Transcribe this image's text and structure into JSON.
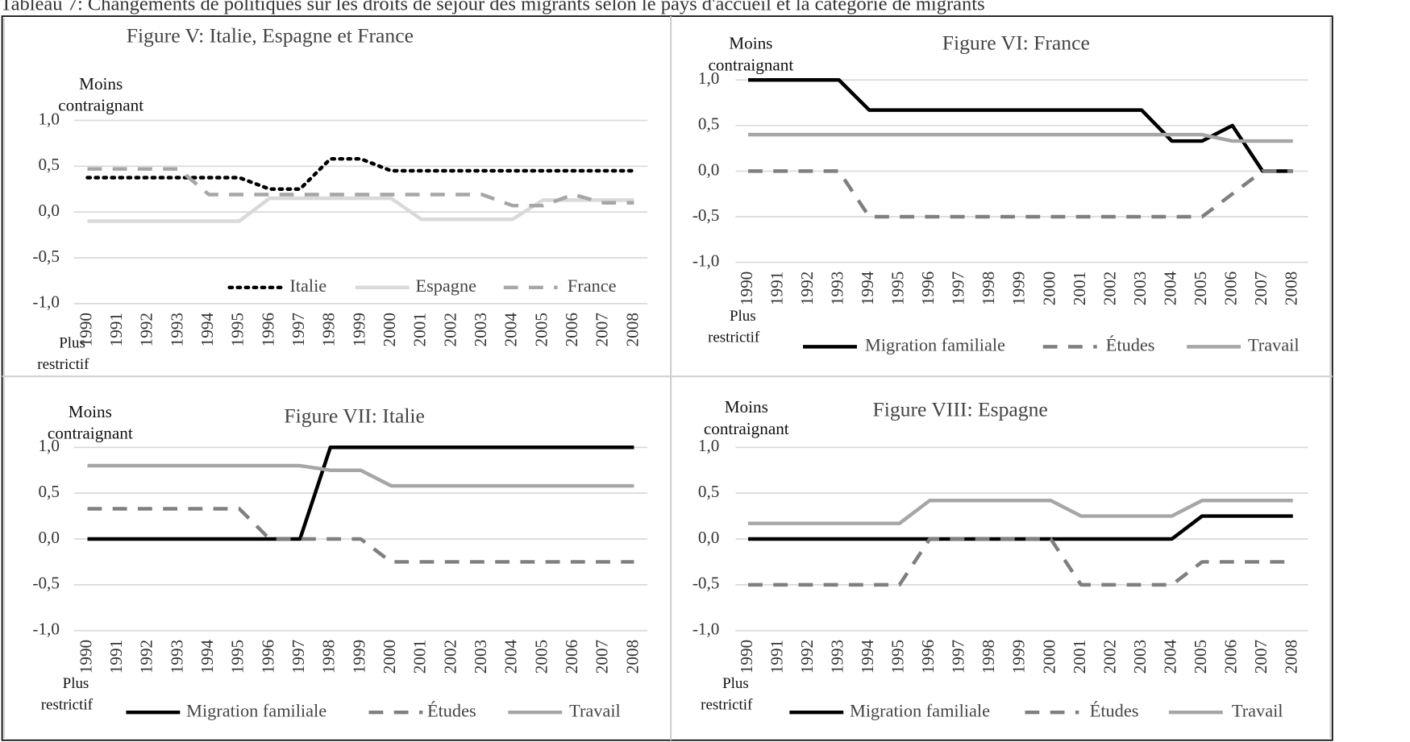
{
  "caption": "Tableau 7: Changements de politiques sur les droits de séjour des migrants selon le pays d'accueil et la catégorie de migrants",
  "chart_data": [
    {
      "type": "line",
      "title": "Figure V: Italie, Espagne et France",
      "top_label": [
        "Moins",
        "contraignant"
      ],
      "bottom_label": [
        "Plus",
        "restrictif"
      ],
      "categories": [
        "1990",
        "1991",
        "1992",
        "1993",
        "1994",
        "1995",
        "1996",
        "1997",
        "1998",
        "1999",
        "2000",
        "2001",
        "2002",
        "2003",
        "2004",
        "2005",
        "2006",
        "2007",
        "2008"
      ],
      "ylim": [
        -1,
        1
      ],
      "yticks": [
        {
          "value": 1,
          "label": "1,0"
        },
        {
          "value": 0.5,
          "label": "0,5"
        },
        {
          "value": 0,
          "label": "0,0"
        },
        {
          "value": -0.5,
          "label": "-0,5"
        },
        {
          "value": -1,
          "label": "-1,0"
        }
      ],
      "grid": true,
      "series": [
        {
          "name": "Italie",
          "color": "#000000",
          "dash": "dotted",
          "values": [
            0.375,
            0.375,
            0.375,
            0.375,
            0.375,
            0.375,
            0.25,
            0.25,
            0.58,
            0.58,
            0.45,
            0.45,
            0.45,
            0.45,
            0.45,
            0.45,
            0.45,
            0.45,
            0.45
          ]
        },
        {
          "name": "Espagne",
          "color": "#d9d9d9",
          "dash": "solid",
          "values": [
            -0.1,
            -0.1,
            -0.1,
            -0.1,
            -0.1,
            -0.1,
            0.15,
            0.15,
            0.15,
            0.15,
            0.15,
            -0.08,
            -0.08,
            -0.08,
            -0.08,
            0.13,
            0.13,
            0.13,
            0.13
          ]
        },
        {
          "name": "France",
          "color": "#a6a6a6",
          "dash": "dashed",
          "values": [
            0.47,
            0.47,
            0.47,
            0.47,
            0.19,
            0.19,
            0.19,
            0.19,
            0.19,
            0.19,
            0.19,
            0.19,
            0.19,
            0.19,
            0.07,
            0.07,
            0.19,
            0.1,
            0.1
          ]
        }
      ]
    },
    {
      "type": "line",
      "title": "Figure VI: France",
      "top_label": [
        "Moins",
        "contraignant"
      ],
      "bottom_label": [
        "Plus",
        "restrictif"
      ],
      "categories": [
        "1990",
        "1991",
        "1992",
        "1993",
        "1994",
        "1995",
        "1996",
        "1997",
        "1998",
        "1999",
        "2000",
        "2001",
        "2002",
        "2003",
        "2004",
        "2005",
        "2006",
        "2007",
        "2008"
      ],
      "ylim": [
        -1,
        1
      ],
      "yticks": [
        {
          "value": 1,
          "label": "1,0"
        },
        {
          "value": 0.5,
          "label": "0,5"
        },
        {
          "value": 0,
          "label": "0,0"
        },
        {
          "value": -0.5,
          "label": "-0,5"
        },
        {
          "value": -1,
          "label": "-1,0"
        }
      ],
      "grid": true,
      "series": [
        {
          "name": "Migration familiale",
          "color": "#000000",
          "dash": "solid",
          "values": [
            1,
            1,
            1,
            1,
            0.67,
            0.67,
            0.67,
            0.67,
            0.67,
            0.67,
            0.67,
            0.67,
            0.67,
            0.67,
            0.33,
            0.33,
            0.5,
            0,
            0
          ]
        },
        {
          "name": "Études",
          "color": "#7f7f7f",
          "dash": "dashed",
          "values": [
            0,
            0,
            0,
            0,
            -0.5,
            -0.5,
            -0.5,
            -0.5,
            -0.5,
            -0.5,
            -0.5,
            -0.5,
            -0.5,
            -0.5,
            -0.5,
            -0.5,
            -0.25,
            0,
            0
          ]
        },
        {
          "name": "Travail",
          "color": "#a6a6a6",
          "dash": "solid",
          "values": [
            0.4,
            0.4,
            0.4,
            0.4,
            0.4,
            0.4,
            0.4,
            0.4,
            0.4,
            0.4,
            0.4,
            0.4,
            0.4,
            0.4,
            0.4,
            0.4,
            0.33,
            0.33,
            0.33
          ]
        }
      ]
    },
    {
      "type": "line",
      "title": "Figure VII: Italie",
      "top_label": [
        "Moins",
        "contraignant"
      ],
      "bottom_label": [
        "Plus",
        "restrictif"
      ],
      "categories": [
        "1990",
        "1991",
        "1992",
        "1993",
        "1994",
        "1995",
        "1996",
        "1997",
        "1998",
        "1999",
        "2000",
        "2001",
        "2002",
        "2003",
        "2004",
        "2005",
        "2006",
        "2007",
        "2008"
      ],
      "ylim": [
        -1,
        1
      ],
      "yticks": [
        {
          "value": 1,
          "label": "1,0"
        },
        {
          "value": 0.5,
          "label": "0,5"
        },
        {
          "value": 0,
          "label": "0,0"
        },
        {
          "value": -0.5,
          "label": "-0,5"
        },
        {
          "value": -1,
          "label": "-1,0"
        }
      ],
      "grid": true,
      "series": [
        {
          "name": "Migration familiale",
          "color": "#000000",
          "dash": "solid",
          "values": [
            0,
            0,
            0,
            0,
            0,
            0,
            0,
            0,
            1,
            1,
            1,
            1,
            1,
            1,
            1,
            1,
            1,
            1,
            1
          ]
        },
        {
          "name": "Études",
          "color": "#7f7f7f",
          "dash": "dashed",
          "values": [
            0.33,
            0.33,
            0.33,
            0.33,
            0.33,
            0.33,
            0,
            0,
            0,
            0,
            -0.25,
            -0.25,
            -0.25,
            -0.25,
            -0.25,
            -0.25,
            -0.25,
            -0.25,
            -0.25
          ]
        },
        {
          "name": "Travail",
          "color": "#a6a6a6",
          "dash": "solid",
          "values": [
            0.8,
            0.8,
            0.8,
            0.8,
            0.8,
            0.8,
            0.8,
            0.8,
            0.75,
            0.75,
            0.58,
            0.58,
            0.58,
            0.58,
            0.58,
            0.58,
            0.58,
            0.58,
            0.58
          ]
        }
      ]
    },
    {
      "type": "line",
      "title": "Figure VIII: Espagne",
      "top_label": [
        "Moins",
        "contraignant"
      ],
      "bottom_label": [
        "Plus",
        "restrictif"
      ],
      "categories": [
        "1990",
        "1991",
        "1992",
        "1993",
        "1994",
        "1995",
        "1996",
        "1997",
        "1998",
        "1999",
        "2000",
        "2001",
        "2002",
        "2003",
        "2004",
        "2005",
        "2006",
        "2007",
        "2008"
      ],
      "ylim": [
        -1,
        1
      ],
      "yticks": [
        {
          "value": 1,
          "label": "1,0"
        },
        {
          "value": 0.5,
          "label": "0,5"
        },
        {
          "value": 0,
          "label": "0,0"
        },
        {
          "value": -0.5,
          "label": "-0,5"
        },
        {
          "value": -1,
          "label": "-1,0"
        }
      ],
      "grid": true,
      "series": [
        {
          "name": "Migration familiale",
          "color": "#000000",
          "dash": "solid",
          "values": [
            0,
            0,
            0,
            0,
            0,
            0,
            0,
            0,
            0,
            0,
            0,
            0,
            0,
            0,
            0,
            0.25,
            0.25,
            0.25,
            0.25
          ]
        },
        {
          "name": "Études",
          "color": "#7f7f7f",
          "dash": "dashed",
          "values": [
            -0.5,
            -0.5,
            -0.5,
            -0.5,
            -0.5,
            -0.5,
            0,
            0,
            0,
            0,
            0,
            -0.5,
            -0.5,
            -0.5,
            -0.5,
            -0.25,
            -0.25,
            -0.25,
            -0.25
          ]
        },
        {
          "name": "Travail",
          "color": "#a6a6a6",
          "dash": "solid",
          "values": [
            0.17,
            0.17,
            0.17,
            0.17,
            0.17,
            0.17,
            0.42,
            0.42,
            0.42,
            0.42,
            0.42,
            0.25,
            0.25,
            0.25,
            0.25,
            0.42,
            0.42,
            0.42,
            0.42
          ]
        }
      ]
    }
  ]
}
